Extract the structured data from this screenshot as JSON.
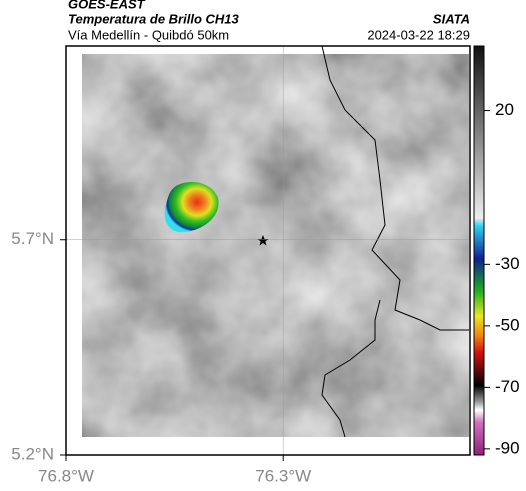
{
  "header": {
    "satellite": "GOES-EAST",
    "title": "Temperatura de Brillo CH13",
    "subtitle": "Vía Medellín - Quibdó 50km",
    "source": "SIATA",
    "datetime": "2024-03-22 18:29"
  },
  "map": {
    "xlim": [
      -76.8,
      -75.87
    ],
    "ylim": [
      5.2,
      6.15
    ],
    "xticks": [
      {
        "value": -76.8,
        "label": "76.8°W"
      },
      {
        "value": -76.3,
        "label": "76.3°W"
      }
    ],
    "yticks": [
      {
        "value": 5.2,
        "label": "5.2°N"
      },
      {
        "value": 5.7,
        "label": "5.7°N"
      }
    ],
    "grid": true
  },
  "colorbar": {
    "lim": [
      -92,
      41
    ],
    "ticks": [
      20,
      -30,
      -50,
      -70,
      -90
    ]
  }
}
